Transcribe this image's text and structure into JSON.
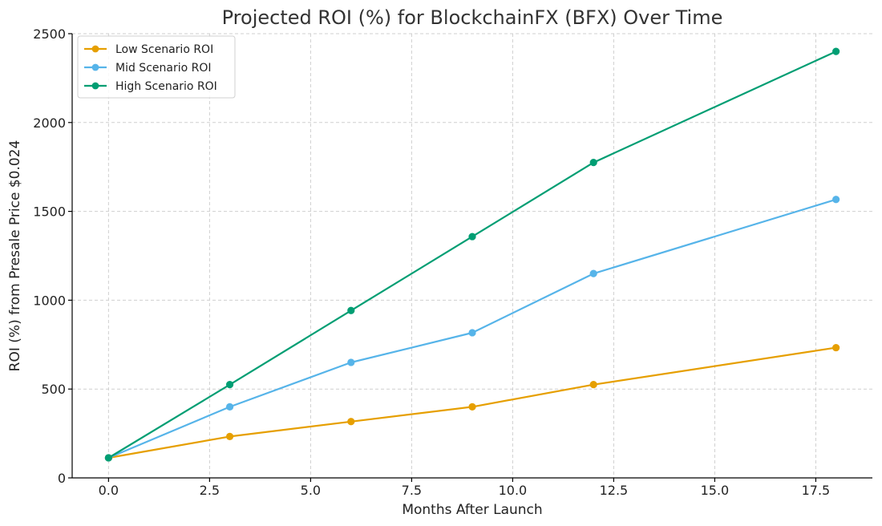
{
  "chart_data": {
    "type": "line",
    "title": "Projected ROI (%) for BlockchainFX (BFX) Over Time",
    "xlabel": "Months After Launch",
    "ylabel": "ROI (%) from Presale Price $0.024",
    "xlim": [
      -0.9,
      18.9
    ],
    "ylim": [
      0,
      2500
    ],
    "xticks": [
      0.0,
      2.5,
      5.0,
      7.5,
      10.0,
      12.5,
      15.0,
      17.5
    ],
    "xtick_labels": [
      "0.0",
      "2.5",
      "5.0",
      "7.5",
      "10.0",
      "12.5",
      "15.0",
      "17.5"
    ],
    "yticks": [
      0,
      500,
      1000,
      1500,
      2000,
      2500
    ],
    "ytick_labels": [
      "0",
      "500",
      "1000",
      "1500",
      "2000",
      "2500"
    ],
    "grid": true,
    "legend_position": "top-left",
    "x": [
      0,
      3,
      6,
      9,
      12,
      18
    ],
    "series": [
      {
        "name": "Low Scenario ROI",
        "color": "#E69F00",
        "values": [
          113,
          233,
          317,
          400,
          525,
          733
        ]
      },
      {
        "name": "Mid Scenario ROI",
        "color": "#56B4E9",
        "values": [
          113,
          400,
          650,
          817,
          1150,
          1567
        ]
      },
      {
        "name": "High Scenario ROI",
        "color": "#009E73",
        "values": [
          113,
          525,
          942,
          1358,
          1775,
          2400
        ]
      }
    ]
  }
}
